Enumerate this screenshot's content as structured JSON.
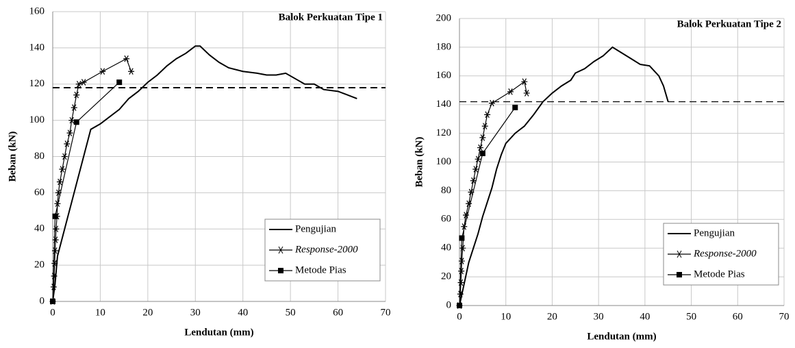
{
  "chart_data": [
    {
      "type": "line",
      "title": "Balok Perkuatan Tipe 1",
      "x_label": "Lendutan (mm)",
      "y_label": "Beban (kN)",
      "xlim": [
        0,
        70
      ],
      "xticks": [
        0,
        10,
        20,
        30,
        40,
        50,
        60,
        70
      ],
      "ylim": [
        0,
        160
      ],
      "yticks": [
        0,
        20,
        40,
        60,
        80,
        100,
        120,
        140,
        160
      ],
      "grid": true,
      "legend": "lower right",
      "hlines": [
        {
          "value": 118,
          "style": "dashed",
          "color": "#000000"
        }
      ],
      "series": [
        {
          "name": "Pengujian",
          "color": "#000000",
          "marker": null,
          "x": [
            0,
            0.5,
            1,
            2,
            3,
            4,
            5,
            6,
            7,
            8,
            10,
            12,
            14,
            16,
            18,
            20,
            22,
            24,
            26,
            28,
            29,
            30,
            31,
            33,
            35,
            37,
            40,
            43,
            45,
            47,
            49,
            51,
            53,
            55,
            57,
            60,
            62,
            64
          ],
          "values": [
            0,
            10,
            25,
            35,
            45,
            55,
            65,
            75,
            85,
            95,
            98,
            102,
            106,
            112,
            116,
            121,
            125,
            130,
            134,
            137,
            139,
            141,
            141,
            136,
            132,
            129,
            127,
            126,
            125,
            125,
            126,
            123,
            120,
            120,
            117,
            116,
            114,
            112
          ]
        },
        {
          "name": "Response-2000",
          "color": "#000000",
          "marker": "star",
          "font_style": "italic",
          "x": [
            0,
            0.2,
            0.3,
            0.4,
            0.5,
            0.6,
            0.7,
            0.9,
            1,
            1.2,
            1.5,
            2,
            2.5,
            3,
            3.6,
            4,
            4.5,
            5,
            5.5,
            6.5,
            10.5,
            15.5,
            16.5
          ],
          "values": [
            0,
            8,
            14,
            21,
            28,
            34,
            40,
            47,
            54,
            60,
            66,
            73,
            80,
            87,
            93,
            100,
            107,
            114,
            120,
            121,
            127,
            134,
            127
          ]
        },
        {
          "name": "Metode Pias",
          "color": "#000000",
          "marker": "square",
          "x": [
            0,
            0.5,
            5,
            14
          ],
          "values": [
            0,
            47,
            99,
            121
          ]
        }
      ]
    },
    {
      "type": "line",
      "title": "Balok Perkuatan Tipe 2",
      "x_label": "Lendutan (mm)",
      "y_label": "Beban (kN)",
      "xlim": [
        0,
        70
      ],
      "xticks": [
        0,
        10,
        20,
        30,
        40,
        50,
        60,
        70
      ],
      "ylim": [
        0,
        200
      ],
      "yticks": [
        0,
        20,
        40,
        60,
        80,
        100,
        120,
        140,
        160,
        180,
        200
      ],
      "grid": true,
      "legend": "lower right",
      "hlines": [
        {
          "value": 142,
          "style": "dashed",
          "color": "#000000"
        }
      ],
      "series": [
        {
          "name": "Pengujian",
          "color": "#000000",
          "marker": null,
          "x": [
            0,
            1,
            2,
            3,
            4,
            5,
            6,
            7,
            8,
            9,
            10,
            12,
            14,
            16,
            18,
            20,
            22,
            24,
            25,
            27,
            29,
            31,
            33,
            35,
            37,
            39,
            41,
            43,
            44,
            45
          ],
          "values": [
            0,
            15,
            30,
            40,
            50,
            62,
            72,
            82,
            95,
            105,
            113,
            120,
            125,
            133,
            142,
            148,
            153,
            157,
            162,
            165,
            170,
            174,
            180,
            176,
            172,
            168,
            167,
            160,
            153,
            142
          ]
        },
        {
          "name": "Response-2000",
          "color": "#000000",
          "marker": "star",
          "font_style": "italic",
          "x": [
            0,
            0.2,
            0.3,
            0.4,
            0.5,
            0.7,
            1,
            1.4,
            2,
            2.5,
            3,
            3.5,
            4,
            4.5,
            5,
            5.5,
            6,
            7,
            11,
            14,
            14.5
          ],
          "values": [
            0,
            8,
            16,
            24,
            31,
            40,
            55,
            63,
            71,
            79,
            87,
            95,
            102,
            110,
            117,
            125,
            133,
            141,
            149,
            156,
            148
          ]
        },
        {
          "name": "Metode Pias",
          "color": "#000000",
          "marker": "square",
          "x": [
            0,
            0.5,
            5,
            12
          ],
          "values": [
            0,
            47,
            106,
            138
          ]
        }
      ]
    }
  ]
}
